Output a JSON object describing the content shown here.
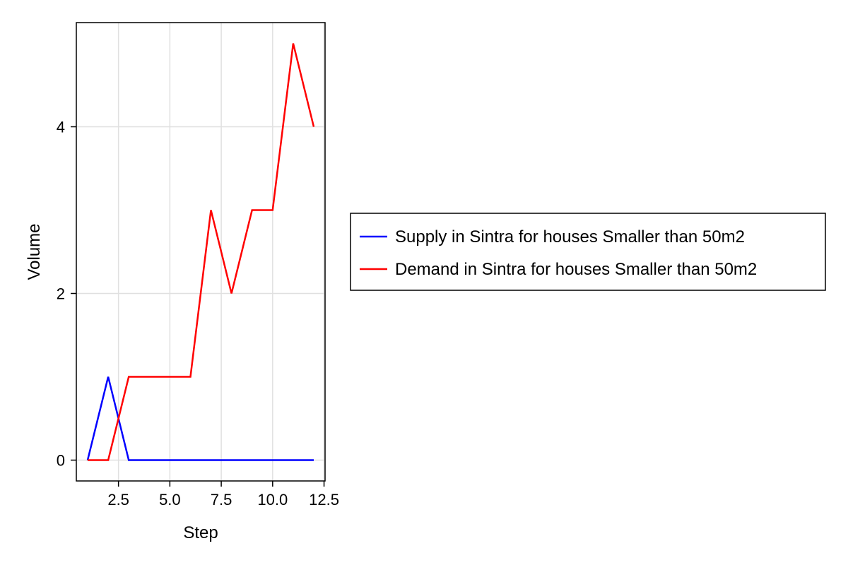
{
  "chart_data": {
    "type": "line",
    "xlabel": "Step",
    "ylabel": "Volume",
    "xlim": [
      0.45,
      12.55
    ],
    "ylim": [
      -0.25,
      5.25
    ],
    "xticks": [
      2.5,
      5.0,
      7.5,
      10.0,
      12.5
    ],
    "xtick_labels": [
      "2.5",
      "5.0",
      "7.5",
      "10.0",
      "12.5"
    ],
    "yticks": [
      0,
      2,
      4
    ],
    "ytick_labels": [
      "0",
      "2",
      "4"
    ],
    "grid": true,
    "legend_position": "right",
    "series": [
      {
        "name": "Supply in Sintra for houses Smaller than 50m2",
        "color": "#0000ff",
        "x": [
          1,
          2,
          3,
          4,
          5,
          6,
          7,
          8,
          9,
          10,
          11,
          12
        ],
        "values": [
          0,
          1,
          0,
          0,
          0,
          0,
          0,
          0,
          0,
          0,
          0,
          0
        ]
      },
      {
        "name": "Demand in Sintra for houses Smaller than 50m2",
        "color": "#ff0000",
        "x": [
          1,
          2,
          3,
          4,
          5,
          6,
          7,
          8,
          9,
          10,
          11,
          12
        ],
        "values": [
          0,
          0,
          1,
          1,
          1,
          1,
          3,
          2,
          3,
          3,
          5,
          4
        ]
      }
    ]
  }
}
